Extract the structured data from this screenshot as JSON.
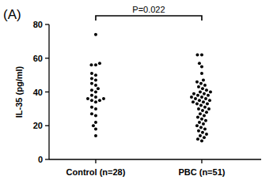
{
  "chart_data": {
    "type": "strip",
    "panel_label": "(A)",
    "annotation": "P=0.022",
    "y_label": "IL-35 (pg/ml)",
    "categories": [
      "Control (n=28)",
      "PBC (n=51)"
    ],
    "values": [
      [
        74,
        57,
        56,
        56,
        51,
        50,
        48,
        47,
        45,
        44,
        42,
        41,
        40,
        38,
        37,
        36,
        36,
        35,
        35,
        34,
        31,
        30,
        27,
        26,
        22,
        20,
        18,
        14
      ],
      [
        62,
        62,
        57,
        55,
        51,
        47,
        46,
        45,
        44,
        43,
        42,
        41,
        40,
        40,
        39,
        39,
        38,
        38,
        37,
        37,
        36,
        36,
        35,
        35,
        34,
        34,
        33,
        33,
        32,
        31,
        30,
        30,
        29,
        28,
        27,
        26,
        25,
        24,
        23,
        22,
        21,
        20,
        19,
        18,
        17,
        16,
        15,
        14,
        13,
        12,
        11
      ]
    ],
    "color": "#000000",
    "marker": "circle",
    "ylim": [
      0,
      80
    ],
    "yticks": [
      0,
      20,
      40,
      60,
      80
    ],
    "grid": false
  }
}
